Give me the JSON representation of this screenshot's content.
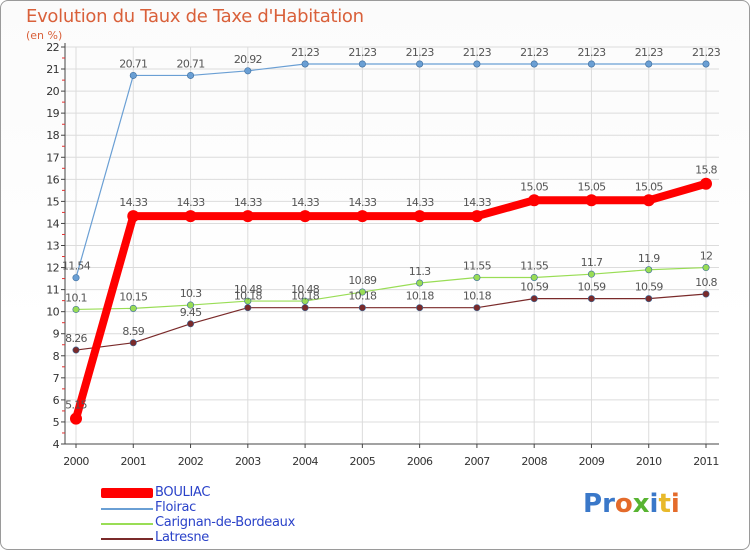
{
  "chart_data": {
    "type": "line",
    "title": "Evolution du Taux de Taxe d'Habitation",
    "unit": "(en %)",
    "ylim": [
      4,
      22
    ],
    "yticks": [
      4,
      5,
      6,
      7,
      8,
      9,
      10,
      11,
      12,
      13,
      14,
      15,
      16,
      17,
      18,
      19,
      20,
      21,
      22
    ],
    "categories": [
      "2000",
      "2001",
      "2002",
      "2003",
      "2004",
      "2005",
      "2006",
      "2007",
      "2008",
      "2009",
      "2010",
      "2011"
    ],
    "series": [
      {
        "name": "BOULIAC",
        "color": "#ff0000",
        "values": [
          5.15,
          14.33,
          14.33,
          14.33,
          14.33,
          14.33,
          14.33,
          14.33,
          15.05,
          15.05,
          15.05,
          15.8
        ],
        "labels": [
          "5.15",
          "14.33",
          "14.33",
          "14.33",
          "14.33",
          "14.33",
          "14.33",
          "14.33",
          "15.05",
          "15.05",
          "15.05",
          "15.8"
        ]
      },
      {
        "name": "Floirac",
        "color": "#6a9fd4",
        "values": [
          11.54,
          20.71,
          20.71,
          20.92,
          21.23,
          21.23,
          21.23,
          21.23,
          21.23,
          21.23,
          21.23,
          21.23
        ],
        "labels": [
          "11.54",
          "20.71",
          "20.71",
          "20.92",
          "21.23",
          "21.23",
          "21.23",
          "21.23",
          "21.23",
          "21.23",
          "21.23",
          "21.23"
        ]
      },
      {
        "name": "Carignan-de-Bordeaux",
        "color": "#99dd55",
        "values": [
          10.1,
          10.15,
          10.3,
          10.48,
          10.48,
          10.89,
          11.3,
          11.55,
          11.55,
          11.7,
          11.9,
          12
        ],
        "labels": [
          "10.1",
          "10.15",
          "10.3",
          "10.48",
          "10.48",
          "10.89",
          "11.3",
          "11.55",
          "11.55",
          "11.7",
          "11.9",
          "12"
        ]
      },
      {
        "name": "Latresne",
        "color": "#7a2a2a",
        "values": [
          8.26,
          8.59,
          9.45,
          10.18,
          10.18,
          10.18,
          10.18,
          10.18,
          10.59,
          10.59,
          10.59,
          10.8
        ],
        "labels": [
          "8.26",
          "8.59",
          "9.45",
          "10.18",
          "10.18",
          "10.18",
          "10.18",
          "10.18",
          "10.59",
          "10.59",
          "10.59",
          "10.8"
        ]
      }
    ]
  },
  "legend": {
    "items": [
      {
        "label": "BOULIAC",
        "color": "#ff0000"
      },
      {
        "label": "Floirac",
        "color": "#6a9fd4"
      },
      {
        "label": "Carignan-de-Bordeaux",
        "color": "#99dd55"
      },
      {
        "label": "Latresne",
        "color": "#7a2a2a"
      }
    ]
  },
  "brand": {
    "text": "Proxiti"
  }
}
